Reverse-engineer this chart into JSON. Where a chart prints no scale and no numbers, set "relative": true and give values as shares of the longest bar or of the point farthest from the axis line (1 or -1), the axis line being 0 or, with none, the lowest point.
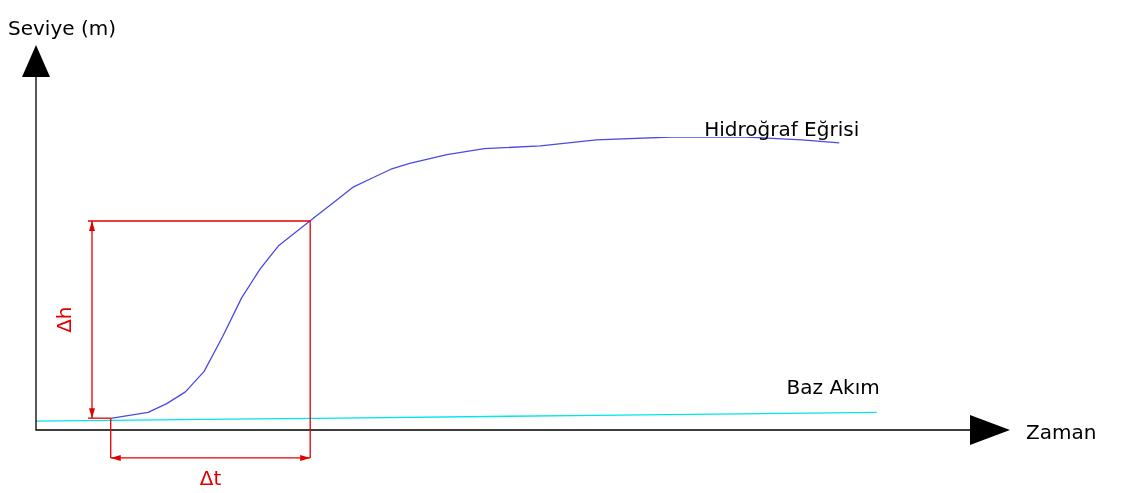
{
  "chart_data": {
    "type": "line",
    "relative": true,
    "ylabel": "Seviye (m)",
    "xlabel": "Zaman",
    "grid": false,
    "legend": false,
    "marker": "none",
    "line_style": "solid",
    "categories": [
      null,
      null,
      null,
      null,
      null,
      null,
      null,
      null,
      null,
      null,
      null,
      null,
      null,
      null,
      null,
      null,
      null,
      null,
      null,
      null,
      null,
      null,
      null,
      null,
      null,
      null,
      null,
      null,
      null,
      null,
      null,
      null,
      null,
      null,
      null,
      null,
      null,
      null,
      null,
      null,
      null,
      null,
      null,
      null,
      null,
      null,
      null,
      null,
      null,
      null,
      null
    ],
    "series": [
      {
        "name": "Hidroğraf Eğrisi",
        "color": "#4a4ae6",
        "values": [
          null,
          null,
          null,
          null,
          0.04,
          0.05,
          0.06,
          0.09,
          0.13,
          0.2,
          0.32,
          0.45,
          0.55,
          0.63,
          0.68,
          0.73,
          0.78,
          0.83,
          0.86,
          0.89,
          0.91,
          null,
          0.94,
          null,
          0.96,
          null,
          null,
          0.97,
          null,
          null,
          0.99,
          null,
          null,
          null,
          1.0,
          null,
          null,
          null,
          1.0,
          null,
          null,
          0.99,
          null,
          0.98,
          null,
          null,
          null,
          null,
          null,
          null,
          null
        ]
      },
      {
        "name": "Baz Akım",
        "color": "#00e5ee",
        "values": [
          0.03,
          null,
          null,
          null,
          null,
          null,
          null,
          null,
          null,
          null,
          null,
          null,
          null,
          null,
          null,
          0.04,
          null,
          null,
          null,
          null,
          null,
          null,
          null,
          null,
          null,
          null,
          null,
          null,
          null,
          null,
          0.05,
          null,
          null,
          null,
          null,
          null,
          null,
          null,
          null,
          null,
          null,
          null,
          null,
          null,
          null,
          0.06,
          null,
          null,
          null,
          null,
          null
        ]
      }
    ],
    "annotations": [
      "Δh",
      "Δt"
    ]
  }
}
